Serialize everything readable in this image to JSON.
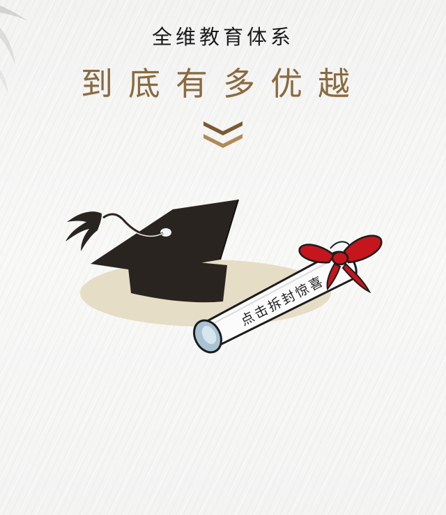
{
  "header": {
    "subtitle": "全维教育体系",
    "headline": "到底有多优越"
  },
  "icons": {
    "scroll_hint": "double-chevron-down-icon",
    "cap": "graduation-cap-icon",
    "diploma": "diploma-scroll-icon",
    "ribbon": "red-ribbon-bow-icon"
  },
  "diploma": {
    "cta_label": "点击拆封惊喜"
  },
  "colors": {
    "headline": "#8a6a3f",
    "subtitle": "#1a1a1a",
    "ribbon": "#c4161c",
    "cap": "#2a2421",
    "shadow_ellipse": "#e6ddc6",
    "scroll_end": "#a9c3d3"
  }
}
